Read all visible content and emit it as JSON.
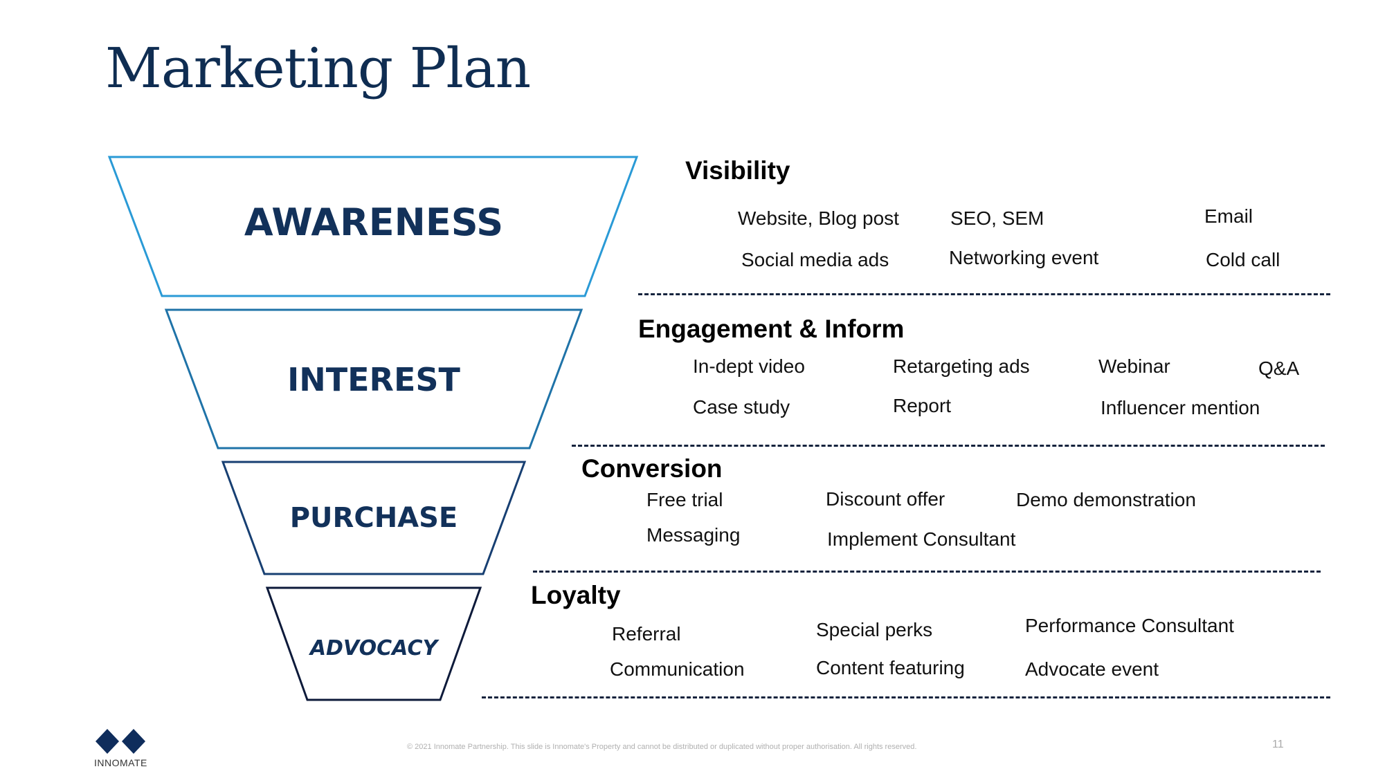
{
  "title": "Marketing Plan",
  "colors": {
    "title": "#0f2d52",
    "stage_strokes": [
      "#2a9ad6",
      "#1f73a8",
      "#173f72",
      "#0d1a3a"
    ],
    "stage_text": "#12315a"
  },
  "funnel": {
    "stages": [
      {
        "label": "AWARENESS"
      },
      {
        "label": "INTEREST"
      },
      {
        "label": "PURCHASE"
      },
      {
        "label": "ADVOCACY"
      }
    ]
  },
  "sections": [
    {
      "title": "Visibility",
      "items": [
        "Website, Blog post",
        "SEO, SEM",
        "Email",
        "Social media ads",
        "Networking event",
        "Cold call"
      ]
    },
    {
      "title": "Engagement & Inform",
      "items": [
        "In-dept video",
        "Retargeting ads",
        "Webinar",
        "Q&A",
        "Case study",
        "Report",
        "Influencer mention"
      ]
    },
    {
      "title": "Conversion",
      "items": [
        "Free trial",
        "Discount offer",
        "Demo demonstration",
        "Messaging",
        "Implement Consultant"
      ]
    },
    {
      "title": "Loyalty",
      "items": [
        "Referral",
        "Special perks",
        "Performance Consultant",
        "Communication",
        "Content featuring",
        "Advocate event"
      ]
    }
  ],
  "logo": {
    "text": "INNOMATE",
    "icon": "diamond-logo-icon"
  },
  "footer": "© 2021 Innomate Partnership. This slide is Innomate's Property and cannot be distributed or duplicated without proper authorisation. All rights reserved.",
  "page_number": "11"
}
